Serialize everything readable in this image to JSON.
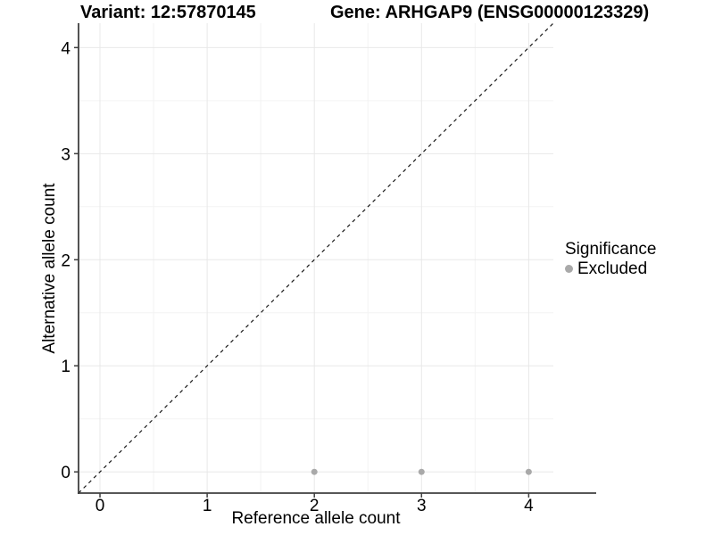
{
  "chart_data": {
    "type": "scatter",
    "titles": {
      "variant": "Variant: 12:57870145",
      "gene": "Gene: ARHGAP9 (ENSG00000123329)"
    },
    "xlabel": "Reference allele count",
    "ylabel": "Alternative allele count",
    "xlim": [
      -0.2,
      4.23
    ],
    "ylim": [
      -0.2,
      4.23
    ],
    "x_ticks": [
      0,
      1,
      2,
      3,
      4
    ],
    "y_ticks": [
      0,
      1,
      2,
      3,
      4
    ],
    "minor_ticks": [
      0.5,
      1.5,
      2.5,
      3.5
    ],
    "grid": "major+minor",
    "points": [
      {
        "x": 2,
        "y": 0,
        "significance": "Excluded"
      },
      {
        "x": 3,
        "y": 0,
        "significance": "Excluded"
      },
      {
        "x": 4,
        "y": 0,
        "significance": "Excluded"
      }
    ],
    "identity_line": {
      "style": "dashed",
      "from": [
        -0.2,
        -0.2
      ],
      "to": [
        4.23,
        4.23
      ]
    },
    "legend": {
      "title": "Significance",
      "position": "right",
      "items": [
        {
          "label": "Excluded",
          "color": "#a9a9a9"
        }
      ]
    },
    "style": {
      "point_color": "#a9a9a9",
      "point_radius": 3.5,
      "line_color": "#1a1a1a",
      "axis_color": "#3f3f3f",
      "major_grid_color": "#e8e8e8",
      "minor_grid_color": "#f3f3f3",
      "background": "#ffffff"
    }
  }
}
